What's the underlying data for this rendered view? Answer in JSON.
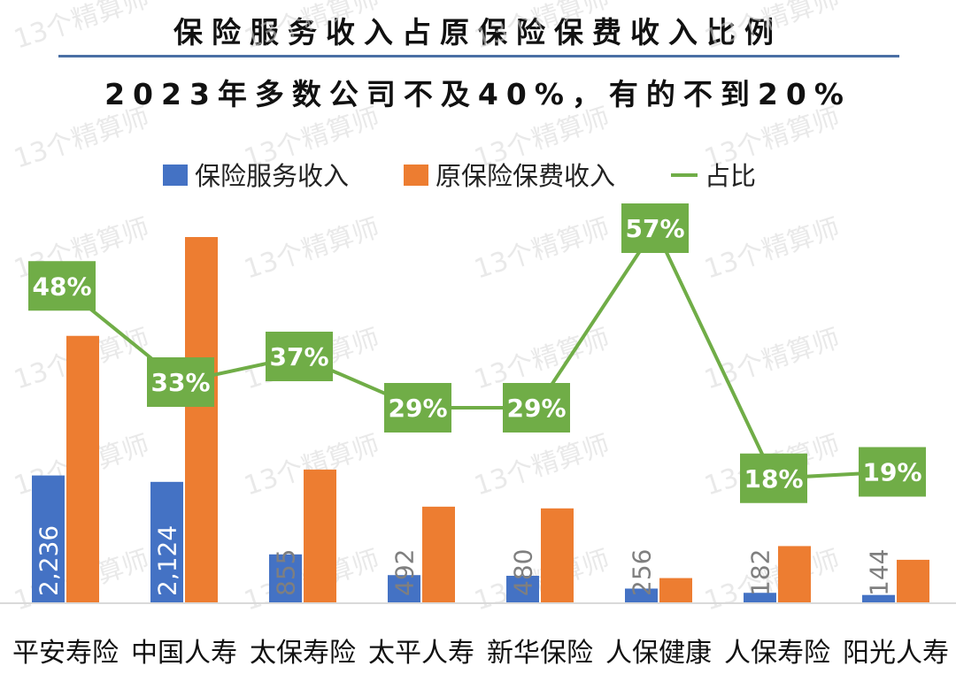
{
  "title": "保险服务收入占原保险保费收入比例",
  "subtitle": "2023年多数公司不及40%，有的不到20%",
  "watermark": "13个精算师",
  "colors": {
    "service": "#4472c4",
    "premium": "#ed7d31",
    "ratio": "#70ad47",
    "rule": "#4a6fa5"
  },
  "chart_data": {
    "type": "bar",
    "categories": [
      "平安寿险",
      "中国人寿",
      "太保寿险",
      "太平人寿",
      "新华保险",
      "人保健康",
      "人保寿险",
      "阳光人寿"
    ],
    "series": [
      {
        "name": "保险服务收入",
        "values": [
          2236,
          2124,
          855,
          492,
          480,
          256,
          182,
          144
        ],
        "labels": [
          "2,236",
          "2,124",
          "855",
          "492",
          "480",
          "256",
          "182",
          "144"
        ]
      },
      {
        "name": "原保险保费收入",
        "values": [
          4680,
          6410,
          2340,
          1690,
          1660,
          440,
          1000,
          760
        ]
      },
      {
        "name": "占比",
        "type": "line",
        "values": [
          48,
          33,
          37,
          29,
          29,
          57,
          18,
          19
        ],
        "labels": [
          "48%",
          "33%",
          "37%",
          "29%",
          "29%",
          "57%",
          "18%",
          "19%"
        ]
      }
    ],
    "legend": "top-center",
    "grid": false
  }
}
